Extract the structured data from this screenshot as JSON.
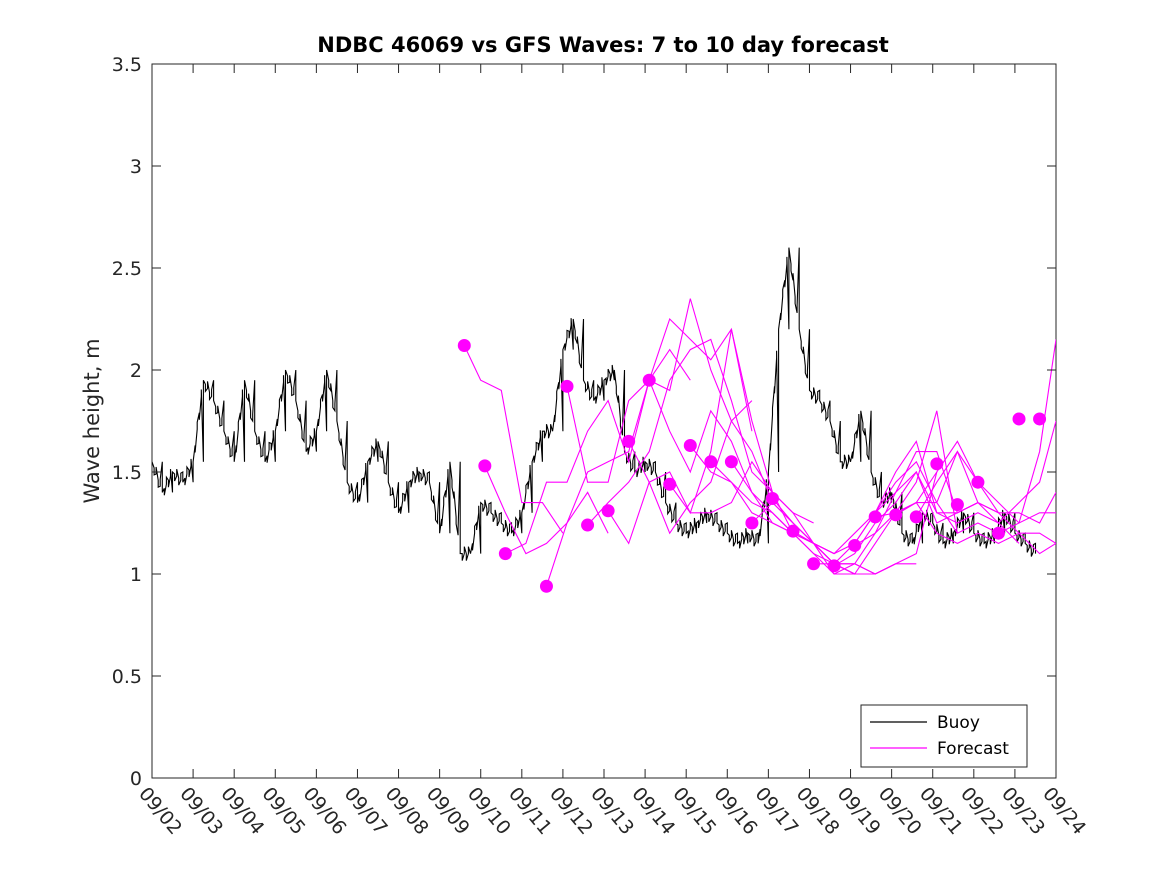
{
  "chart_data": {
    "type": "line",
    "title": "NDBC 46069 vs GFS Waves: 7 to 10 day forecast",
    "xlabel": "",
    "ylabel": "Wave height, m",
    "xlim": [
      0,
      22
    ],
    "ylim": [
      0,
      3.5
    ],
    "yticks": [
      0,
      0.5,
      1,
      1.5,
      2,
      2.5,
      3,
      3.5
    ],
    "ytick_labels": [
      "0",
      "0.5",
      "1",
      "1.5",
      "2",
      "2.5",
      "3",
      "3.5"
    ],
    "xtick_labels": [
      "09/02",
      "09/03",
      "09/04",
      "09/05",
      "09/06",
      "09/07",
      "09/08",
      "09/09",
      "09/10",
      "09/11",
      "09/12",
      "09/13",
      "09/14",
      "09/15",
      "09/16",
      "09/17",
      "09/18",
      "09/19",
      "09/20",
      "09/21",
      "09/22",
      "09/23",
      "09/24"
    ],
    "legend": {
      "position": "bottom-right",
      "entries": [
        {
          "label": "Buoy",
          "color": "#000000"
        },
        {
          "label": "Forecast",
          "color": "#ff00ff"
        }
      ]
    },
    "series": [
      {
        "name": "Buoy",
        "color": "#000000",
        "x": [
          0,
          0.25,
          0.5,
          0.75,
          1,
          1.25,
          1.5,
          1.75,
          2,
          2.25,
          2.5,
          2.75,
          3,
          3.25,
          3.5,
          3.75,
          4,
          4.25,
          4.5,
          4.75,
          5,
          5.25,
          5.5,
          5.75,
          6,
          6.25,
          6.5,
          6.75,
          7,
          7.25,
          7.5,
          7.75,
          8,
          8.25,
          8.5,
          8.75,
          9,
          9.25,
          9.5,
          9.75,
          10,
          10.25,
          10.5,
          10.75,
          11,
          11.25,
          11.5,
          11.75,
          12,
          12.25,
          12.5,
          12.75,
          13,
          13.25,
          13.5,
          13.75,
          14,
          14.25,
          14.5,
          14.75,
          15,
          15.25,
          15.5,
          15.75,
          16,
          16.25,
          16.5,
          16.75,
          17,
          17.25,
          17.5,
          17.75,
          18,
          18.25,
          18.5,
          18.75,
          19,
          19.25,
          19.5,
          19.75,
          20,
          20.25,
          20.5,
          20.75,
          21,
          21.25,
          21.5
        ],
        "y": [
          1.55,
          1.4,
          1.5,
          1.45,
          1.55,
          1.95,
          1.85,
          1.7,
          1.55,
          1.95,
          1.7,
          1.55,
          1.7,
          2.0,
          1.85,
          1.6,
          1.7,
          2.0,
          1.75,
          1.45,
          1.35,
          1.55,
          1.65,
          1.45,
          1.3,
          1.45,
          1.5,
          1.45,
          1.2,
          1.55,
          1.1,
          1.1,
          1.35,
          1.3,
          1.25,
          1.2,
          1.3,
          1.55,
          1.7,
          1.7,
          2.1,
          2.25,
          1.95,
          1.85,
          1.95,
          2.0,
          1.6,
          1.5,
          1.55,
          1.5,
          1.35,
          1.25,
          1.2,
          1.25,
          1.3,
          1.25,
          1.2,
          1.15,
          1.2,
          1.15,
          1.5,
          2.2,
          2.6,
          2.2,
          1.9,
          1.85,
          1.75,
          1.55,
          1.55,
          1.8,
          1.5,
          1.35,
          1.4,
          1.2,
          1.15,
          1.3,
          1.25,
          1.15,
          1.2,
          1.3,
          1.2,
          1.15,
          1.2,
          1.3,
          1.2,
          1.15,
          1.1
        ]
      },
      {
        "name": "Forecast run 1",
        "color": "#ff00ff",
        "x": [
          7.6,
          8.0,
          8.5,
          9.0,
          9.5,
          10.0
        ],
        "y": [
          2.12,
          1.95,
          1.9,
          1.35,
          1.35,
          1.2
        ]
      },
      {
        "name": "Forecast run 2",
        "color": "#ff00ff",
        "x": [
          8.1,
          8.6,
          9.1,
          9.6,
          10.1,
          10.6,
          11.1
        ],
        "y": [
          1.53,
          1.3,
          1.1,
          1.15,
          1.25,
          1.4,
          1.2
        ]
      },
      {
        "name": "Forecast run 3",
        "color": "#ff00ff",
        "x": [
          8.6,
          9.1,
          9.6,
          10.1,
          10.6,
          11.1,
          11.6,
          12.1,
          12.6,
          13.1
        ],
        "y": [
          1.1,
          1.15,
          1.45,
          1.45,
          1.7,
          1.85,
          1.55,
          1.95,
          2.1,
          1.95
        ]
      },
      {
        "name": "Forecast run 4",
        "color": "#ff00ff",
        "x": [
          9.6,
          10.1,
          10.6,
          11.1,
          11.6,
          12.1,
          12.6,
          13.1,
          13.6,
          14.1,
          14.6
        ],
        "y": [
          0.94,
          1.25,
          1.5,
          1.55,
          1.6,
          1.95,
          1.9,
          2.35,
          2.0,
          1.75,
          1.85
        ]
      },
      {
        "name": "Forecast run 5",
        "color": "#ff00ff",
        "x": [
          10.1,
          10.6,
          11.1,
          11.6,
          12.1,
          12.6,
          13.1,
          13.6,
          14.1,
          14.6
        ],
        "y": [
          1.92,
          1.45,
          1.45,
          1.85,
          1.95,
          2.25,
          2.15,
          2.05,
          2.2,
          1.7
        ]
      },
      {
        "name": "Forecast run 6",
        "color": "#ff00ff",
        "x": [
          10.6,
          11.1,
          11.6,
          12.1,
          12.6,
          13.1,
          13.6,
          14.1,
          14.6,
          15.1,
          15.6,
          16.1
        ],
        "y": [
          1.24,
          1.35,
          1.45,
          1.6,
          1.95,
          2.1,
          2.15,
          1.85,
          1.5,
          1.4,
          1.3,
          1.25
        ]
      },
      {
        "name": "Forecast run 7",
        "color": "#ff00ff",
        "x": [
          11.1,
          11.6,
          12.1,
          12.6,
          13.1,
          13.6,
          14.1,
          14.6,
          15.1,
          15.6,
          16.1,
          16.6
        ],
        "y": [
          1.31,
          1.15,
          1.45,
          1.5,
          1.3,
          1.6,
          2.2,
          1.75,
          1.4,
          1.3,
          1.15,
          1.1
        ]
      },
      {
        "name": "Forecast run 8",
        "color": "#ff00ff",
        "x": [
          11.6,
          12.1,
          12.6,
          13.1,
          13.6,
          14.1,
          14.6,
          15.1,
          15.6,
          16.1,
          16.6,
          17.1
        ],
        "y": [
          1.65,
          1.45,
          1.2,
          1.35,
          1.45,
          1.75,
          1.6,
          1.35,
          1.25,
          1.15,
          1.05,
          1.0
        ]
      },
      {
        "name": "Forecast run 9",
        "color": "#ff00ff",
        "x": [
          12.1,
          12.6,
          13.1,
          13.6,
          14.1,
          14.6,
          15.1,
          15.6,
          16.1,
          16.6,
          17.1,
          17.6
        ],
        "y": [
          1.95,
          1.7,
          1.5,
          1.8,
          1.65,
          1.4,
          1.25,
          1.2,
          1.1,
          1.05,
          1.05,
          1.0
        ]
      },
      {
        "name": "Forecast run 10",
        "color": "#ff00ff",
        "x": [
          12.6,
          13.1,
          13.6,
          14.1,
          14.6,
          15.1,
          15.6,
          16.1,
          16.6,
          17.1,
          17.6,
          18.1
        ],
        "y": [
          1.44,
          1.3,
          1.3,
          1.35,
          1.55,
          1.4,
          1.2,
          1.15,
          1.05,
          1.0,
          1.0,
          1.05
        ]
      },
      {
        "name": "Forecast run 11",
        "color": "#ff00ff",
        "x": [
          13.1,
          13.6,
          14.1,
          14.6,
          15.1,
          15.6,
          16.1,
          16.6,
          17.1,
          17.6,
          18.1,
          18.6
        ],
        "y": [
          1.63,
          1.5,
          1.45,
          1.35,
          1.3,
          1.2,
          1.1,
          1.0,
          1.0,
          1.0,
          1.05,
          1.05
        ]
      },
      {
        "name": "Forecast run 12",
        "color": "#ff00ff",
        "x": [
          13.6,
          14.1,
          14.6,
          15.1,
          15.6,
          16.1,
          16.6,
          17.1,
          17.6,
          18.1,
          18.6,
          19.1
        ],
        "y": [
          1.55,
          1.45,
          1.3,
          1.25,
          1.2,
          1.15,
          1.0,
          1.05,
          1.0,
          1.05,
          1.1,
          1.5
        ]
      },
      {
        "name": "Forecast run 13",
        "color": "#ff00ff",
        "x": [
          14.1,
          14.6,
          15.1,
          15.6,
          16.1,
          16.6,
          17.1,
          17.6,
          18.1,
          18.6,
          19.1,
          19.6
        ],
        "y": [
          1.55,
          1.4,
          1.3,
          1.2,
          1.15,
          1.05,
          1.0,
          1.15,
          1.3,
          1.45,
          1.8,
          1.2
        ]
      },
      {
        "name": "Forecast run 14",
        "color": "#ff00ff",
        "x": [
          14.6,
          15.1,
          15.6,
          16.1,
          16.6,
          17.1,
          17.6,
          18.1,
          18.6,
          19.1,
          19.6,
          20.1
        ],
        "y": [
          1.25,
          1.35,
          1.25,
          1.15,
          1.05,
          1.05,
          1.2,
          1.4,
          1.6,
          1.6,
          1.3,
          1.35
        ]
      },
      {
        "name": "Forecast run 15",
        "color": "#ff00ff",
        "x": [
          15.1,
          15.6,
          16.1,
          16.6,
          17.1,
          17.6,
          18.1,
          18.6,
          19.1,
          19.6,
          20.1,
          20.6
        ],
        "y": [
          1.37,
          1.25,
          1.15,
          1.1,
          1.15,
          1.3,
          1.4,
          1.5,
          1.25,
          1.3,
          1.35,
          1.3
        ]
      },
      {
        "name": "Forecast run 16",
        "color": "#ff00ff",
        "x": [
          15.6,
          16.1,
          16.6,
          17.1,
          17.6,
          18.1,
          18.6,
          19.1,
          19.6,
          20.1,
          20.6,
          21.1
        ],
        "y": [
          1.21,
          1.15,
          1.1,
          1.2,
          1.3,
          1.5,
          1.65,
          1.3,
          1.25,
          1.3,
          1.25,
          1.15
        ]
      },
      {
        "name": "Forecast run 17",
        "color": "#ff00ff",
        "x": [
          16.1,
          16.6,
          17.1,
          17.6,
          18.1,
          18.6,
          19.1,
          19.6,
          20.1,
          20.6,
          21.1,
          21.6,
          22.0
        ],
        "y": [
          1.05,
          1.05,
          1.15,
          1.3,
          1.45,
          1.55,
          1.35,
          1.2,
          1.25,
          1.2,
          1.25,
          1.6,
          2.15
        ]
      },
      {
        "name": "Forecast run 18",
        "color": "#ff00ff",
        "x": [
          16.6,
          17.1,
          17.6,
          18.1,
          18.6,
          19.1,
          19.6,
          20.1,
          20.6,
          21.1,
          21.6,
          22.0
        ],
        "y": [
          1.04,
          1.1,
          1.25,
          1.35,
          1.5,
          1.3,
          1.3,
          1.35,
          1.3,
          1.3,
          1.25,
          1.4
        ]
      },
      {
        "name": "Forecast run 19",
        "color": "#ff00ff",
        "x": [
          17.1,
          17.6,
          18.1,
          18.6,
          19.1,
          19.6,
          20.1,
          20.6,
          21.1,
          21.6,
          22.0
        ],
        "y": [
          1.14,
          1.2,
          1.3,
          1.35,
          1.35,
          1.6,
          1.45,
          1.3,
          1.2,
          1.2,
          1.15
        ]
      },
      {
        "name": "Forecast run 20",
        "color": "#ff00ff",
        "x": [
          17.6,
          18.1,
          18.6,
          19.1,
          19.6,
          20.1,
          20.6,
          21.1,
          21.6,
          22.0
        ],
        "y": [
          1.28,
          1.3,
          1.35,
          1.2,
          1.15,
          1.2,
          1.15,
          1.2,
          1.1,
          1.15
        ]
      },
      {
        "name": "Forecast run 21",
        "color": "#ff00ff",
        "x": [
          18.1,
          18.6,
          19.1,
          19.6,
          20.1,
          20.6,
          21.1,
          21.6,
          22.0
        ],
        "y": [
          1.29,
          1.35,
          1.5,
          1.65,
          1.45,
          1.35,
          1.25,
          1.3,
          1.3
        ]
      },
      {
        "name": "Forecast run 22",
        "color": "#ff00ff",
        "x": [
          18.6,
          19.1,
          19.6,
          20.1,
          20.6,
          21.1,
          21.6,
          22.0
        ],
        "y": [
          1.28,
          1.45,
          1.6,
          1.35,
          1.25,
          1.35,
          1.45,
          1.75
        ]
      }
    ],
    "forecast_markers": {
      "name": "Forecast start points",
      "color": "#ff00ff",
      "x": [
        7.6,
        8.1,
        8.6,
        9.6,
        10.1,
        10.6,
        11.1,
        11.6,
        12.1,
        12.6,
        13.1,
        13.6,
        14.1,
        14.6,
        15.1,
        15.6,
        16.1,
        16.6,
        17.1,
        17.6,
        18.1,
        18.6,
        19.1,
        19.6,
        20.1,
        20.6,
        21.1,
        21.6
      ],
      "y": [
        2.12,
        1.53,
        1.1,
        0.94,
        1.92,
        1.24,
        1.31,
        1.65,
        1.95,
        1.44,
        1.63,
        1.55,
        1.55,
        1.25,
        1.37,
        1.21,
        1.05,
        1.04,
        1.14,
        1.28,
        1.29,
        1.28,
        1.54,
        1.34,
        1.45,
        1.2,
        1.76,
        1.76
      ]
    }
  }
}
